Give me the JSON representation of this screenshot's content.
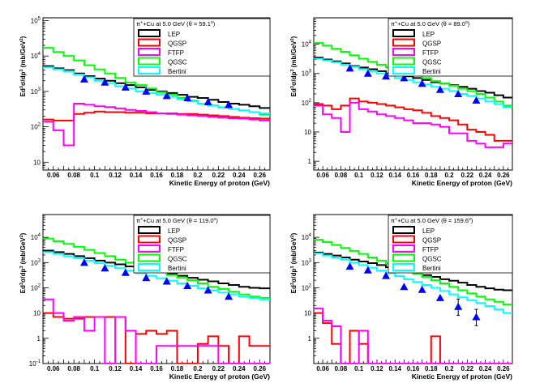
{
  "colors": {
    "LEP": "#000000",
    "QGSP": "#ff0000",
    "FTFP": "#ff00ff",
    "QGSC": "#00ff00",
    "Bertini": "#00ffff",
    "data": "#0000ff"
  },
  "chart_data": [
    {
      "type": "line",
      "title": "π⁺+Cu at 5.0 GeV (θ = 59.1°)",
      "title_parts": {
        "beam": "π",
        "beam_charge": "+",
        "rest": "+Cu at 5.0 GeV (θ = ",
        "angle": "59.1",
        "deg": "o",
        "close": ")"
      },
      "xlabel": "Kinetic Energy of proton (GeV)",
      "ylabel": "E d³σ/dp³ (mb/GeV²)",
      "xlim": [
        0.05,
        0.27
      ],
      "ylim": [
        6,
        120000
      ],
      "log_y": true,
      "legend_position": "top-right",
      "x_ticks": [
        "0.06",
        "0.08",
        "0.1",
        "0.12",
        "0.14",
        "0.16",
        "0.18",
        "0.2",
        "0.22",
        "0.24",
        "0.26"
      ],
      "y_ticks": [
        "10",
        "10²",
        "10³",
        "10⁴",
        "10⁵"
      ],
      "bin_edges": [
        0.05,
        0.06,
        0.07,
        0.08,
        0.09,
        0.1,
        0.11,
        0.12,
        0.13,
        0.14,
        0.15,
        0.16,
        0.17,
        0.18,
        0.19,
        0.2,
        0.21,
        0.22,
        0.23,
        0.24,
        0.25,
        0.26,
        0.27
      ],
      "series": [
        {
          "name": "LEP",
          "values": [
            5200,
            4500,
            4000,
            3200,
            2700,
            2300,
            2000,
            1700,
            1500,
            1300,
            1100,
            1000,
            900,
            800,
            700,
            650,
            580,
            500,
            450,
            420,
            380,
            340
          ]
        },
        {
          "name": "QGSP",
          "values": [
            160,
            150,
            150,
            230,
            250,
            270,
            260,
            260,
            250,
            250,
            240,
            240,
            240,
            230,
            230,
            220,
            210,
            200,
            190,
            180,
            175,
            170
          ]
        },
        {
          "name": "FTFP",
          "values": [
            140,
            80,
            30,
            450,
            420,
            380,
            360,
            330,
            300,
            280,
            260,
            240,
            230,
            220,
            210,
            200,
            190,
            180,
            175,
            170,
            160,
            150
          ]
        },
        {
          "name": "QGSC",
          "values": [
            17000,
            13000,
            10000,
            7500,
            5500,
            4200,
            3200,
            2400,
            1800,
            1500,
            1200,
            950,
            800,
            650,
            550,
            450,
            400,
            350,
            320,
            290,
            260,
            220
          ]
        },
        {
          "name": "Bertini",
          "values": [
            4800,
            4200,
            3700,
            3000,
            2500,
            2000,
            1700,
            1400,
            1200,
            1000,
            900,
            800,
            700,
            600,
            520,
            450,
            400,
            360,
            320,
            290,
            260,
            240
          ]
        }
      ],
      "data_points": {
        "x": [
          0.09,
          0.11,
          0.13,
          0.15,
          0.17,
          0.19,
          0.21,
          0.23
        ],
        "y": [
          2200,
          1800,
          1300,
          1000,
          750,
          650,
          500,
          420
        ]
      }
    },
    {
      "type": "line",
      "title": "π⁺+Cu at 5.0 GeV (θ = 89.0°)",
      "title_parts": {
        "beam": "π",
        "beam_charge": "+",
        "rest": "+Cu at 5.0 GeV (θ = ",
        "angle": "89.0",
        "deg": "o",
        "close": ")"
      },
      "xlabel": "Kinetic Energy of proton (GeV)",
      "ylabel": "E d³σ/dp³ (mb/GeV²)",
      "xlim": [
        0.05,
        0.27
      ],
      "ylim": [
        0.5,
        80000
      ],
      "log_y": true,
      "legend_position": "top-right",
      "x_ticks": [
        "0.06",
        "0.08",
        "0.1",
        "0.12",
        "0.14",
        "0.16",
        "0.18",
        "0.2",
        "0.22",
        "0.24",
        "0.26"
      ],
      "y_ticks": [
        "1",
        "10",
        "10²",
        "10³",
        "10⁴"
      ],
      "bin_edges": [
        0.05,
        0.06,
        0.07,
        0.08,
        0.09,
        0.1,
        0.11,
        0.12,
        0.13,
        0.14,
        0.15,
        0.16,
        0.17,
        0.18,
        0.19,
        0.2,
        0.21,
        0.22,
        0.23,
        0.24,
        0.25,
        0.26,
        0.27
      ],
      "series": [
        {
          "name": "LEP",
          "values": [
            3500,
            3000,
            2600,
            2200,
            1800,
            1600,
            1400,
            1200,
            1000,
            900,
            800,
            700,
            600,
            500,
            450,
            400,
            350,
            300,
            250,
            220,
            180,
            150
          ]
        },
        {
          "name": "QGSP",
          "values": [
            90,
            80,
            60,
            80,
            140,
            110,
            100,
            90,
            80,
            70,
            60,
            55,
            45,
            35,
            30,
            25,
            18,
            12,
            10,
            8,
            5,
            5
          ]
        },
        {
          "name": "FTFP",
          "values": [
            80,
            40,
            30,
            10,
            100,
            60,
            50,
            40,
            35,
            30,
            25,
            20,
            20,
            18,
            15,
            9,
            9,
            5,
            4,
            3,
            3,
            4
          ]
        },
        {
          "name": "QGSC",
          "values": [
            11000,
            9000,
            7000,
            5500,
            4200,
            3200,
            2500,
            2000,
            1600,
            1300,
            1000,
            850,
            700,
            550,
            450,
            380,
            300,
            250,
            200,
            150,
            110,
            80
          ]
        },
        {
          "name": "Bertini",
          "values": [
            3200,
            2800,
            2400,
            2000,
            1700,
            1400,
            1200,
            1000,
            850,
            700,
            600,
            500,
            420,
            350,
            300,
            250,
            200,
            170,
            140,
            110,
            90,
            70
          ]
        }
      ],
      "data_points": {
        "x": [
          0.09,
          0.11,
          0.13,
          0.15,
          0.17,
          0.19,
          0.21,
          0.23
        ],
        "y": [
          1500,
          1000,
          800,
          700,
          450,
          280,
          200,
          120
        ]
      }
    },
    {
      "type": "line",
      "title": "π⁺+Cu at 5.0 GeV (θ = 119.0°)",
      "title_parts": {
        "beam": "π",
        "beam_charge": "+",
        "rest": "+Cu at 5.0 GeV (θ = ",
        "angle": "119.0",
        "deg": "o",
        "close": ")"
      },
      "xlabel": "Kinetic Energy of proton (GeV)",
      "ylabel": "E d³σ/dp³ (mb/GeV²)",
      "xlim": [
        0.05,
        0.27
      ],
      "ylim": [
        0.1,
        80000
      ],
      "log_y": true,
      "legend_position": "top-right",
      "x_ticks": [
        "0.06",
        "0.08",
        "0.1",
        "0.12",
        "0.14",
        "0.16",
        "0.18",
        "0.2",
        "0.22",
        "0.24",
        "0.26"
      ],
      "y_ticks": [
        "10⁻¹",
        "1",
        "10",
        "10²",
        "10³",
        "10⁴"
      ],
      "bin_edges": [
        0.05,
        0.06,
        0.07,
        0.08,
        0.09,
        0.1,
        0.11,
        0.12,
        0.13,
        0.14,
        0.15,
        0.16,
        0.17,
        0.18,
        0.19,
        0.2,
        0.21,
        0.22,
        0.23,
        0.24,
        0.25,
        0.26,
        0.27
      ],
      "series": [
        {
          "name": "LEP",
          "values": [
            3000,
            2600,
            2200,
            1800,
            1500,
            1200,
            1000,
            850,
            700,
            600,
            500,
            420,
            350,
            300,
            250,
            210,
            180,
            150,
            130,
            110,
            100,
            95
          ]
        },
        {
          "name": "QGSP",
          "values": [
            10,
            7,
            6,
            6,
            7,
            7,
            7,
            7,
            0.1,
            1.5,
            2,
            1.5,
            2,
            0.1,
            0.1,
            0.6,
            1.2,
            0.5,
            0.1,
            1.2,
            0.5,
            0.5
          ]
        },
        {
          "name": "FTFP",
          "values": [
            35,
            10,
            5,
            7,
            2,
            7,
            0.1,
            7,
            2,
            0.1,
            0.1,
            0.5,
            0.5,
            0.5,
            0.5,
            0.5,
            0.5,
            0.1,
            0.1,
            0.1,
            0.1,
            0.1
          ]
        },
        {
          "name": "QGSC",
          "values": [
            9000,
            7000,
            5500,
            4200,
            3200,
            2400,
            1800,
            1300,
            1000,
            750,
            550,
            420,
            320,
            250,
            200,
            150,
            110,
            90,
            70,
            55,
            45,
            40
          ]
        },
        {
          "name": "Bertini",
          "values": [
            2600,
            2200,
            1800,
            1500,
            1200,
            950,
            750,
            600,
            480,
            380,
            300,
            240,
            190,
            150,
            120,
            95,
            80,
            65,
            55,
            45,
            40,
            35
          ]
        }
      ],
      "data_points": {
        "x": [
          0.09,
          0.11,
          0.13,
          0.15,
          0.17,
          0.19,
          0.21,
          0.23
        ],
        "y": [
          1000,
          600,
          400,
          250,
          180,
          120,
          80,
          45
        ]
      }
    },
    {
      "type": "line",
      "title": "π⁺+Cu at 5.0 GeV (θ = 159.6°)",
      "title_parts": {
        "beam": "π",
        "beam_charge": "+",
        "rest": "+Cu at 5.0 GeV (θ = ",
        "angle": "159.6",
        "deg": "o",
        "close": ")"
      },
      "xlabel": "Kinetic Energy of proton (GeV)",
      "ylabel": "E d³σ/dp³ (mb/GeV²)",
      "xlim": [
        0.05,
        0.27
      ],
      "ylim": [
        0.1,
        80000
      ],
      "log_y": true,
      "legend_position": "top-right",
      "x_ticks": [
        "0.06",
        "0.08",
        "0.1",
        "0.12",
        "0.14",
        "0.16",
        "0.18",
        "0.2",
        "0.22",
        "0.24",
        "0.26"
      ],
      "y_ticks": [
        "1",
        "10",
        "10²",
        "10³",
        "10⁴"
      ],
      "bin_edges": [
        0.05,
        0.06,
        0.07,
        0.08,
        0.09,
        0.1,
        0.11,
        0.12,
        0.13,
        0.14,
        0.15,
        0.16,
        0.17,
        0.18,
        0.19,
        0.2,
        0.21,
        0.22,
        0.23,
        0.24,
        0.25,
        0.26,
        0.27
      ],
      "series": [
        {
          "name": "LEP",
          "values": [
            2500,
            2200,
            1900,
            1600,
            1300,
            1100,
            950,
            800,
            650,
            550,
            450,
            380,
            320,
            270,
            220,
            190,
            160,
            130,
            110,
            95,
            85,
            80
          ]
        },
        {
          "name": "QGSP",
          "values": [
            10,
            4,
            0.6,
            0.1,
            2,
            0.6,
            0.1,
            0.1,
            0.1,
            0.1,
            0.1,
            0.1,
            0.1,
            1.2,
            0.1,
            0.1,
            0.1,
            0.1,
            0.1,
            0.1,
            0.1,
            0.1
          ]
        },
        {
          "name": "FTFP",
          "values": [
            15,
            5,
            3,
            0.1,
            0.1,
            2,
            0.1,
            0.1,
            0.1,
            0.1,
            0.1,
            0.1,
            0.1,
            0.1,
            0.1,
            0.1,
            0.1,
            0.1,
            0.1,
            0.1,
            0.1,
            0.1
          ]
        },
        {
          "name": "QGSC",
          "values": [
            8000,
            6500,
            5000,
            3800,
            2900,
            2200,
            1600,
            1200,
            900,
            650,
            480,
            360,
            270,
            200,
            150,
            110,
            80,
            60,
            45,
            35,
            28,
            22
          ]
        },
        {
          "name": "Bertini",
          "values": [
            2300,
            1900,
            1600,
            1300,
            1000,
            800,
            620,
            480,
            380,
            290,
            220,
            170,
            130,
            100,
            75,
            55,
            42,
            32,
            25,
            19,
            14,
            10
          ]
        }
      ],
      "data_points": {
        "x": [
          0.09,
          0.11,
          0.13,
          0.15,
          0.17,
          0.19,
          0.21,
          0.23
        ],
        "y": [
          700,
          500,
          300,
          110,
          85,
          40,
          18,
          7
        ]
      }
    }
  ]
}
